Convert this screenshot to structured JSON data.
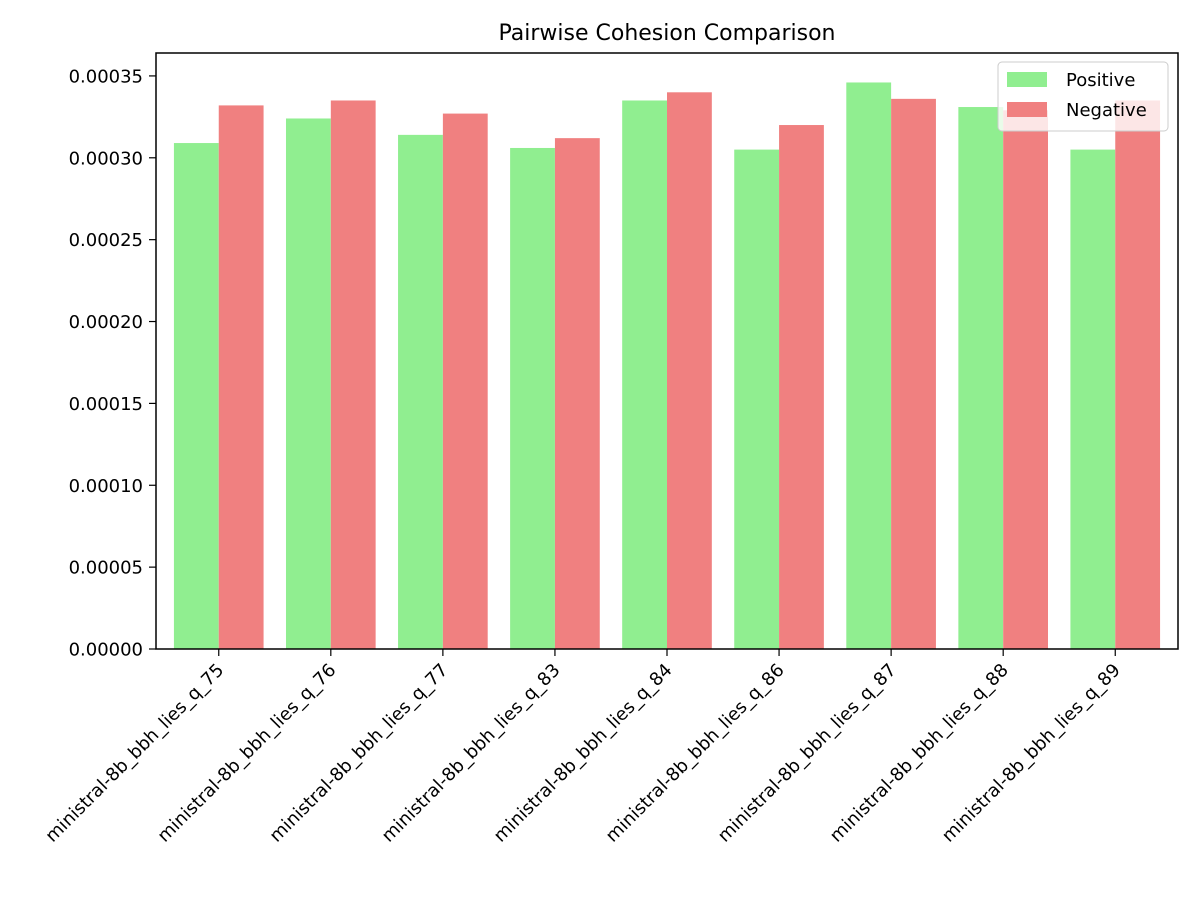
{
  "chart_data": {
    "type": "bar",
    "title": "Pairwise Cohesion Comparison",
    "xlabel": "",
    "ylabel": "",
    "categories": [
      "ministral-8b_bbh_lies_q_75",
      "ministral-8b_bbh_lies_q_76",
      "ministral-8b_bbh_lies_q_77",
      "ministral-8b_bbh_lies_q_83",
      "ministral-8b_bbh_lies_q_84",
      "ministral-8b_bbh_lies_q_86",
      "ministral-8b_bbh_lies_q_87",
      "ministral-8b_bbh_lies_q_88",
      "ministral-8b_bbh_lies_q_89"
    ],
    "series": [
      {
        "name": "Positive",
        "color": "#90ee90",
        "values": [
          0.000309,
          0.000324,
          0.000314,
          0.000306,
          0.000335,
          0.000305,
          0.000346,
          0.000331,
          0.000305
        ]
      },
      {
        "name": "Negative",
        "color": "#f08080",
        "values": [
          0.000332,
          0.000335,
          0.000327,
          0.000312,
          0.00034,
          0.00032,
          0.000336,
          0.000329,
          0.000335
        ]
      }
    ],
    "ylim": [
      0,
      0.000364
    ],
    "yticks": [
      0,
      5e-05,
      0.0001,
      0.00015,
      0.0002,
      0.00025,
      0.0003,
      0.00035
    ],
    "ytick_labels": [
      "0.00000",
      "0.00005",
      "0.00010",
      "0.00015",
      "0.00020",
      "0.00025",
      "0.00030",
      "0.00035"
    ],
    "grid": false,
    "legend": "top-right"
  }
}
